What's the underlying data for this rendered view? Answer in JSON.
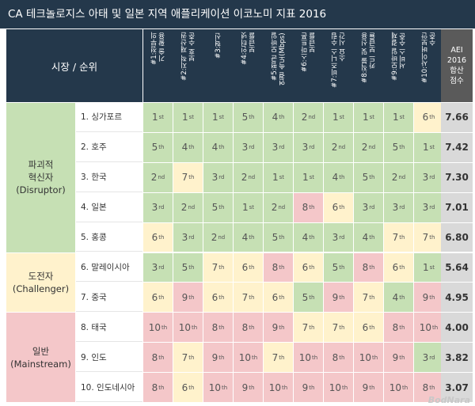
{
  "title": "CA 테크놀로지스 아태 및 일본 지역 애플리케이션 이코노미 지표 2016",
  "header": {
    "row_label": "시장 / 순위",
    "columns": [
      "#1:정부의\n기술 활용",
      "#2:지적 재산권\n보호 수준",
      "#3:혁신",
      "#4:인터넷\n보급률",
      "#5:평균 모바일\n연결 속도(Mbps)",
      "#6:스마트폰\n보급률",
      "#7:비즈니스 수립\n소요 시간",
      "#8:직불 및 신용\n카드 보급률",
      "#9:모바일 결제\n서비스 수준",
      "#10:사이버보안\n수준"
    ],
    "score_label": "AEI\n2016\n합산\n점수"
  },
  "groups": [
    {
      "label": "파괴적\n혁신자\n(Disruptor)"
    },
    {
      "label": "도전자\n(Challenger)"
    },
    {
      "label": "일반\n(Mainstream)"
    }
  ],
  "colors": {
    "green": "#c6e0b4",
    "yellow": "#fff2cc",
    "pink": "#f4c7c9",
    "header": "#24384b"
  },
  "rows": [
    {
      "name": "1. 싱가포르",
      "ranks": [
        [
          "1",
          "st",
          "g"
        ],
        [
          "1",
          "st",
          "g"
        ],
        [
          "1",
          "st",
          "g"
        ],
        [
          "5",
          "th",
          "g"
        ],
        [
          "4",
          "th",
          "g"
        ],
        [
          "2",
          "nd",
          "g"
        ],
        [
          "1",
          "st",
          "g"
        ],
        [
          "1",
          "st",
          "g"
        ],
        [
          "1",
          "st",
          "g"
        ],
        [
          "6",
          "th",
          "y"
        ]
      ],
      "score": "7.66"
    },
    {
      "name": "2. 호주",
      "ranks": [
        [
          "5",
          "th",
          "g"
        ],
        [
          "4",
          "th",
          "g"
        ],
        [
          "4",
          "th",
          "g"
        ],
        [
          "3",
          "rd",
          "g"
        ],
        [
          "3",
          "rd",
          "g"
        ],
        [
          "3",
          "rd",
          "g"
        ],
        [
          "2",
          "nd",
          "g"
        ],
        [
          "2",
          "nd",
          "g"
        ],
        [
          "5",
          "th",
          "g"
        ],
        [
          "1",
          "st",
          "g"
        ]
      ],
      "score": "7.42"
    },
    {
      "name": "3. 한국",
      "ranks": [
        [
          "2",
          "nd",
          "g"
        ],
        [
          "7",
          "th",
          "y"
        ],
        [
          "3",
          "rd",
          "g"
        ],
        [
          "2",
          "nd",
          "g"
        ],
        [
          "1",
          "st",
          "g"
        ],
        [
          "1",
          "st",
          "g"
        ],
        [
          "4",
          "th",
          "g"
        ],
        [
          "5",
          "th",
          "g"
        ],
        [
          "2",
          "nd",
          "g"
        ],
        [
          "3",
          "rd",
          "g"
        ]
      ],
      "score": "7.30"
    },
    {
      "name": "4. 일본",
      "ranks": [
        [
          "3",
          "rd",
          "g"
        ],
        [
          "2",
          "nd",
          "g"
        ],
        [
          "5",
          "th",
          "g"
        ],
        [
          "1",
          "st",
          "g"
        ],
        [
          "2",
          "nd",
          "g"
        ],
        [
          "8",
          "th",
          "p"
        ],
        [
          "6",
          "th",
          "y"
        ],
        [
          "3",
          "rd",
          "g"
        ],
        [
          "3",
          "rd",
          "g"
        ],
        [
          "3",
          "rd",
          "g"
        ]
      ],
      "score": "7.01"
    },
    {
      "name": "5. 홍콩",
      "ranks": [
        [
          "6",
          "th",
          "y"
        ],
        [
          "3",
          "rd",
          "g"
        ],
        [
          "2",
          "nd",
          "g"
        ],
        [
          "4",
          "th",
          "g"
        ],
        [
          "5",
          "th",
          "g"
        ],
        [
          "4",
          "th",
          "g"
        ],
        [
          "3",
          "rd",
          "g"
        ],
        [
          "4",
          "th",
          "g"
        ],
        [
          "7",
          "th",
          "y"
        ],
        [
          "7",
          "th",
          "y"
        ]
      ],
      "score": "6.80"
    },
    {
      "name": "6. 말레이시아",
      "ranks": [
        [
          "3",
          "rd",
          "g"
        ],
        [
          "5",
          "th",
          "g"
        ],
        [
          "7",
          "th",
          "y"
        ],
        [
          "6",
          "th",
          "y"
        ],
        [
          "8",
          "th",
          "p"
        ],
        [
          "6",
          "th",
          "y"
        ],
        [
          "5",
          "th",
          "g"
        ],
        [
          "8",
          "th",
          "p"
        ],
        [
          "6",
          "th",
          "y"
        ],
        [
          "1",
          "st",
          "g"
        ]
      ],
      "score": "5.64"
    },
    {
      "name": "7. 중국",
      "ranks": [
        [
          "6",
          "th",
          "y"
        ],
        [
          "9",
          "th",
          "p"
        ],
        [
          "6",
          "th",
          "y"
        ],
        [
          "7",
          "th",
          "y"
        ],
        [
          "6",
          "th",
          "y"
        ],
        [
          "5",
          "th",
          "g"
        ],
        [
          "9",
          "th",
          "p"
        ],
        [
          "7",
          "th",
          "y"
        ],
        [
          "4",
          "th",
          "g"
        ],
        [
          "9",
          "th",
          "p"
        ]
      ],
      "score": "4.95"
    },
    {
      "name": "8. 태국",
      "ranks": [
        [
          "10",
          "th",
          "p"
        ],
        [
          "10",
          "th",
          "p"
        ],
        [
          "8",
          "th",
          "p"
        ],
        [
          "8",
          "th",
          "p"
        ],
        [
          "9",
          "th",
          "p"
        ],
        [
          "7",
          "th",
          "y"
        ],
        [
          "7",
          "th",
          "y"
        ],
        [
          "6",
          "th",
          "y"
        ],
        [
          "8",
          "th",
          "p"
        ],
        [
          "10",
          "th",
          "p"
        ]
      ],
      "score": "4.00"
    },
    {
      "name": "9. 인도",
      "ranks": [
        [
          "8",
          "th",
          "p"
        ],
        [
          "7",
          "th",
          "y"
        ],
        [
          "9",
          "th",
          "p"
        ],
        [
          "10",
          "th",
          "p"
        ],
        [
          "7",
          "th",
          "y"
        ],
        [
          "10",
          "th",
          "p"
        ],
        [
          "8",
          "th",
          "p"
        ],
        [
          "10",
          "th",
          "p"
        ],
        [
          "9",
          "th",
          "p"
        ],
        [
          "3",
          "rd",
          "g"
        ]
      ],
      "score": "3.82"
    },
    {
      "name": "10. 인도네시아",
      "ranks": [
        [
          "8",
          "th",
          "p"
        ],
        [
          "6",
          "th",
          "y"
        ],
        [
          "10",
          "th",
          "p"
        ],
        [
          "9",
          "th",
          "p"
        ],
        [
          "10",
          "th",
          "p"
        ],
        [
          "9",
          "th",
          "p"
        ],
        [
          "10",
          "th",
          "p"
        ],
        [
          "9",
          "th",
          "p"
        ],
        [
          "10",
          "th",
          "p"
        ],
        [
          "8",
          "th",
          "p"
        ]
      ],
      "score": "3.07"
    }
  ],
  "watermark": "BodNara"
}
